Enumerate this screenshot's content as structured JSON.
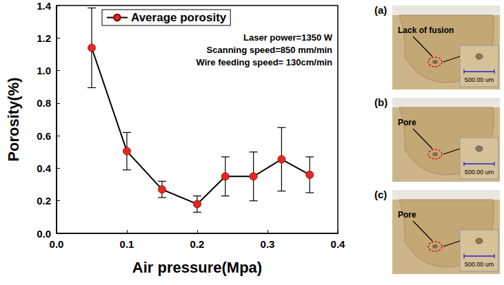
{
  "chart_data": {
    "type": "line",
    "x": [
      0.05,
      0.1,
      0.15,
      0.2,
      0.24,
      0.28,
      0.32,
      0.36
    ],
    "series": [
      {
        "name": "Average porosity",
        "color": "#e8261e",
        "marker": "circle",
        "values": [
          1.14,
          0.505,
          0.27,
          0.18,
          0.35,
          0.35,
          0.455,
          0.36
        ],
        "errors": [
          0.245,
          0.115,
          0.05,
          0.05,
          0.12,
          0.15,
          0.195,
          0.11
        ]
      }
    ],
    "x_label": "Air pressure(Mpa)",
    "y_label": "Porosity(%)",
    "xlim": [
      0,
      0.4
    ],
    "xticks": [
      {
        "value": 0,
        "label": "0.0"
      },
      0.1,
      0.2,
      0.3,
      {
        "value": 0.4,
        "label": "0.4"
      }
    ],
    "ylim": [
      0,
      1.4
    ],
    "yticks": [
      {
        "value": 0,
        "label": "0.0"
      },
      0.2,
      0.4,
      0.6,
      0.8,
      {
        "value": 1,
        "label": "1.0"
      },
      1.2,
      1.4
    ],
    "annotations": [
      "Laser power=1350 W",
      "Scanning speed=850 mm/min",
      "Wire feeding speed= 130cm/min"
    ],
    "legend": "upper left",
    "grid": false
  },
  "panels": [
    {
      "label": "(a)",
      "annotation": "Lack of fusion",
      "scale_bar": "500.00 um"
    },
    {
      "label": "(b)",
      "annotation": "Pore",
      "scale_bar": "500.00 um"
    },
    {
      "label": "(c)",
      "annotation": "Pore",
      "scale_bar": "500.00 um"
    }
  ]
}
